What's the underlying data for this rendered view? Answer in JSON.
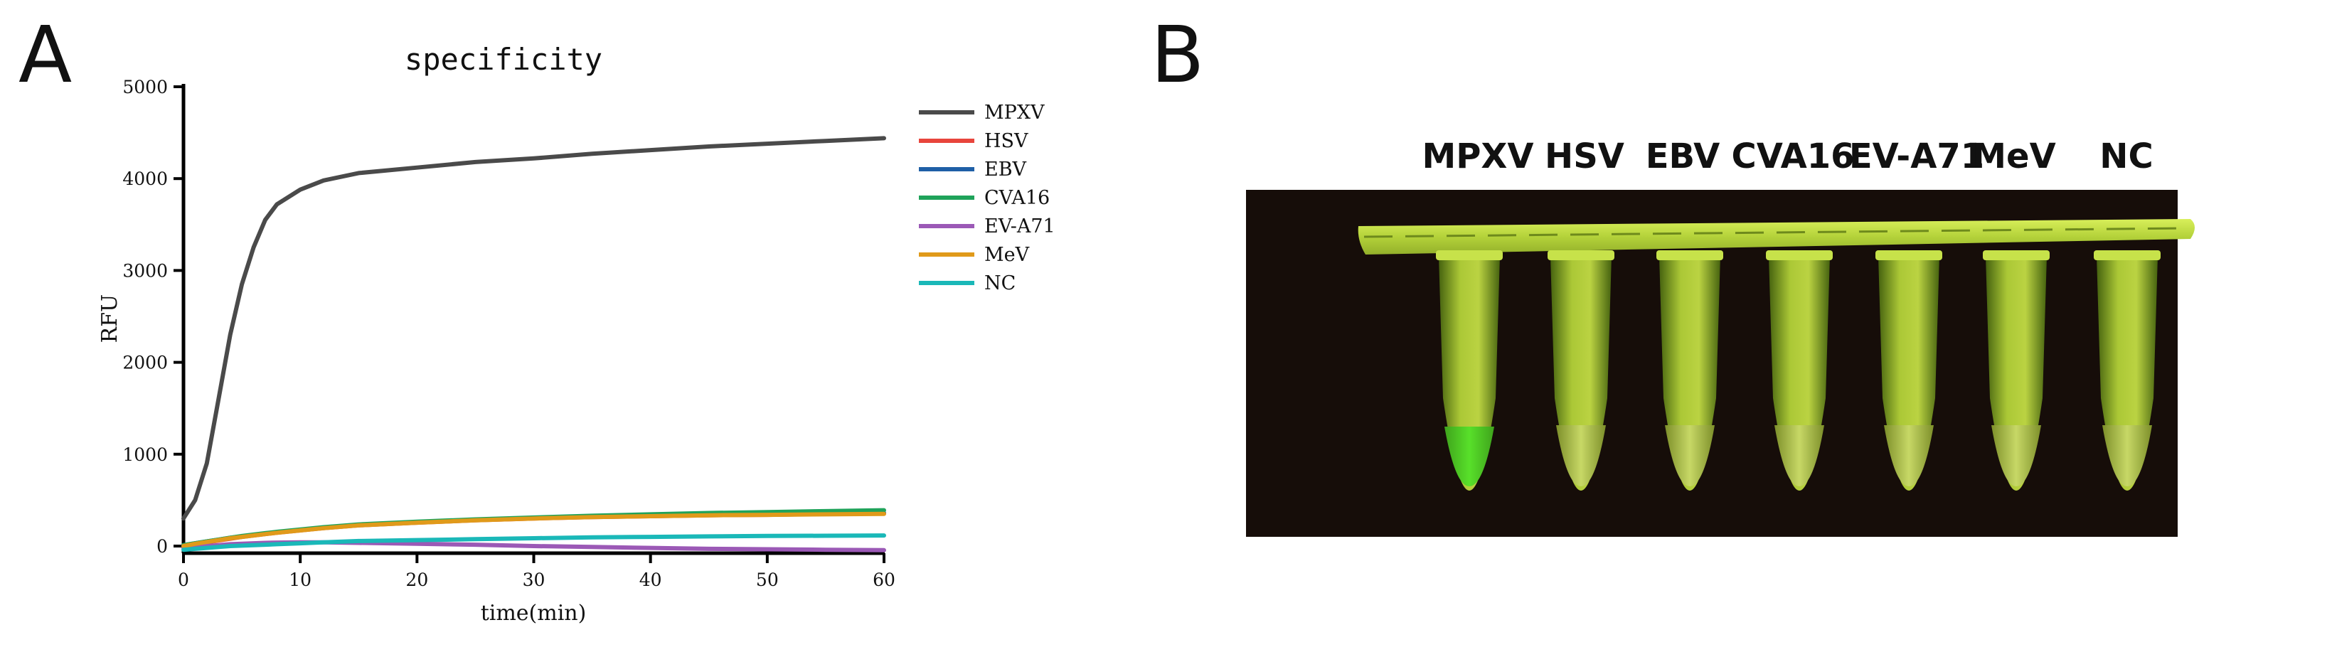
{
  "panels": {
    "a": "A",
    "b": "B"
  },
  "chart_data": {
    "type": "line",
    "title": "specificity",
    "xlabel": "time(min)",
    "ylabel": "RFU",
    "xlim": [
      0,
      60
    ],
    "ylim": [
      0,
      5000
    ],
    "xticks": [
      0,
      10,
      20,
      30,
      40,
      50,
      60
    ],
    "yticks": [
      0,
      1000,
      2000,
      3000,
      4000,
      5000
    ],
    "legend_position": "right",
    "grid": false,
    "x": [
      0,
      1,
      2,
      3,
      4,
      5,
      6,
      7,
      8,
      10,
      12,
      15,
      20,
      25,
      30,
      35,
      40,
      45,
      50,
      55,
      60
    ],
    "series": [
      {
        "name": "MPXV",
        "color": "#4a4a4a",
        "values": [
          300,
          500,
          900,
          1600,
          2300,
          2850,
          3250,
          3550,
          3720,
          3880,
          3980,
          4060,
          4120,
          4180,
          4220,
          4270,
          4310,
          4350,
          4380,
          4410,
          4440
        ]
      },
      {
        "name": "HSV",
        "color": "#e8453c",
        "values": [
          0,
          20,
          40,
          60,
          80,
          100,
          115,
          130,
          145,
          170,
          195,
          225,
          255,
          280,
          300,
          315,
          325,
          335,
          340,
          350,
          355
        ]
      },
      {
        "name": "EBV",
        "color": "#1f5fa6",
        "values": [
          10,
          30,
          50,
          70,
          90,
          105,
          120,
          135,
          150,
          175,
          200,
          230,
          260,
          285,
          305,
          320,
          330,
          340,
          350,
          355,
          360
        ]
      },
      {
        "name": "CVA16",
        "color": "#1fa35a",
        "values": [
          10,
          30,
          50,
          70,
          90,
          110,
          125,
          140,
          155,
          180,
          205,
          235,
          265,
          290,
          310,
          330,
          345,
          360,
          370,
          380,
          390
        ]
      },
      {
        "name": "EV-A71",
        "color": "#9b59b6",
        "values": [
          -20,
          -10,
          0,
          10,
          20,
          25,
          30,
          35,
          38,
          40,
          40,
          35,
          25,
          15,
          0,
          -10,
          -20,
          -30,
          -35,
          -40,
          -45
        ]
      },
      {
        "name": "MeV",
        "color": "#e09a1a",
        "values": [
          0,
          25,
          45,
          65,
          85,
          100,
          115,
          130,
          145,
          170,
          195,
          225,
          255,
          280,
          300,
          315,
          325,
          335,
          340,
          345,
          350
        ]
      },
      {
        "name": "NC",
        "color": "#1ab8b8",
        "values": [
          -40,
          -30,
          -20,
          -10,
          0,
          5,
          10,
          15,
          20,
          30,
          40,
          55,
          65,
          75,
          85,
          95,
          100,
          105,
          110,
          112,
          115
        ]
      }
    ]
  },
  "photo": {
    "tube_labels": [
      "MPXV",
      "HSV",
      "EBV",
      "CVA16",
      "EV-A71",
      "MeV",
      "NC"
    ]
  }
}
